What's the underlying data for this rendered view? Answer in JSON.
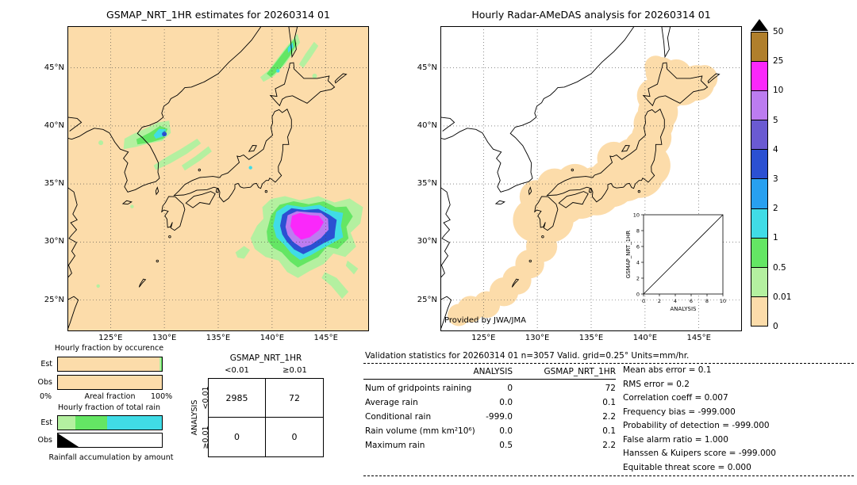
{
  "panels": {
    "left": {
      "title": "GSMAP_NRT_1HR estimates for 20260314 01"
    },
    "right": {
      "title": "Hourly Radar-AMeDAS analysis for 20260314 01",
      "credit": "Provided by JWA/JMA"
    }
  },
  "axes": {
    "lat_labels": [
      "45°N",
      "40°N",
      "35°N",
      "30°N",
      "25°N"
    ],
    "lon_labels": [
      "125°E",
      "130°E",
      "135°E",
      "140°E",
      "145°E"
    ]
  },
  "colorbar": {
    "labels": [
      "50",
      "25",
      "10",
      "5",
      "4",
      "3",
      "2",
      "1",
      "0.5",
      "0.01",
      "0"
    ],
    "colors_top_to_bottom": [
      "#b07f2c",
      "#fa28fa",
      "#bc7cf0",
      "#6a5ad2",
      "#2b50d2",
      "#28a0f0",
      "#40dce6",
      "#64e664",
      "#b4f0a0",
      "#fcdcaa"
    ],
    "overflow_marker": "black-triangle"
  },
  "inset": {
    "xlabel": "ANALYSIS",
    "ylabel": "GSMAP_NRT_1HR",
    "tick_labels": [
      "0",
      "2",
      "4",
      "6",
      "8",
      "10"
    ]
  },
  "occurrence_chart": {
    "title": "Hourly fraction by occurence",
    "row_labels": [
      "Est",
      "Obs"
    ],
    "axis_left": "0%",
    "axis_label": "Areal fraction",
    "axis_right": "100%",
    "est_segments": [
      {
        "color": "#fcdcaa",
        "pct": 97.5
      },
      {
        "color": "#b4f0a0",
        "pct": 1.5
      },
      {
        "color": "#64e664",
        "pct": 1.0
      }
    ],
    "obs_segments": [
      {
        "color": "#fcdcaa",
        "pct": 100
      }
    ]
  },
  "totalrain_chart": {
    "title": "Hourly fraction of total rain",
    "row_labels": [
      "Est",
      "Obs"
    ],
    "caption": "Rainfall accumulation by amount",
    "est_segments": [
      {
        "color": "#b4f0a0",
        "pct": 17
      },
      {
        "color": "#64e664",
        "pct": 30
      },
      {
        "color": "#40dce6",
        "pct": 53
      }
    ],
    "obs_segments": [],
    "obs_wedge_pct": 20
  },
  "contingency": {
    "col_header": "GSMAP_NRT_1HR",
    "row_header": "ANALYSIS",
    "col_labels": [
      "<0.01",
      "≥0.01"
    ],
    "row_labels": [
      "<0.01",
      "≥0.01"
    ],
    "values": [
      [
        "2985",
        "72"
      ],
      [
        "0",
        "0"
      ]
    ]
  },
  "stats": {
    "title": "Validation statistics for 20260314 01  n=3057 Valid. grid=0.25° Units=mm/hr.",
    "col_headers": [
      "ANALYSIS",
      "GSMAP_NRT_1HR"
    ],
    "rows": [
      {
        "label": "Num of gridpoints raining",
        "analysis": "0",
        "gsmap": "72"
      },
      {
        "label": "Average rain",
        "analysis": "0.0",
        "gsmap": "0.1"
      },
      {
        "label": "Conditional rain",
        "analysis": "-999.0",
        "gsmap": "2.2"
      },
      {
        "label": "Rain volume (mm km²10⁶)",
        "analysis": "0.0",
        "gsmap": "0.1"
      },
      {
        "label": "Maximum rain",
        "analysis": "0.5",
        "gsmap": "2.2"
      }
    ],
    "metrics": [
      {
        "label": "Mean abs error",
        "value": "0.1"
      },
      {
        "label": "RMS error",
        "value": "0.2"
      },
      {
        "label": "Correlation coeff",
        "value": "0.007"
      },
      {
        "label": "Frequency bias",
        "value": "-999.000"
      },
      {
        "label": "Probability of detection",
        "value": "-999.000"
      },
      {
        "label": "False alarm ratio",
        "value": "1.000"
      },
      {
        "label": "Hanssen & Kuipers score",
        "value": "-999.000"
      },
      {
        "label": "Equitable threat score",
        "value": "0.000"
      }
    ]
  },
  "chart_data": [
    {
      "type": "heatmap",
      "title": "GSMAP_NRT_1HR estimates for 20260314 01",
      "xticks": [
        "125°E",
        "130°E",
        "135°E",
        "140°E",
        "145°E"
      ],
      "yticks": [
        "45°N",
        "40°N",
        "35°N",
        "30°N",
        "25°N"
      ],
      "colorbar_levels_mm_hr": [
        0,
        0.01,
        0.5,
        1,
        2,
        3,
        4,
        5,
        10,
        25,
        50
      ],
      "notes": "large rain system SE of Japan near 140-146E / 29-33N with magenta core (10-25 band); lighter rain bands over the Sea of Japan near 127-134E / 36-40N and streaks near 139-144E / 44-48N"
    },
    {
      "type": "heatmap",
      "title": "Hourly Radar-AMeDAS analysis for 20260314 01",
      "xticks": [
        "125°E",
        "130°E",
        "135°E",
        "140°E",
        "145°E"
      ],
      "yticks": [
        "45°N",
        "40°N",
        "35°N",
        "30°N",
        "25°N"
      ],
      "colorbar_levels_mm_hr": [
        0,
        0.01,
        0.5,
        1,
        2,
        3,
        4,
        5,
        10,
        25,
        50
      ],
      "notes": "radar coverage band along the Japanese islands shaded at the 0-0.01 level; no raining gridpoints in the analysis"
    },
    {
      "type": "bar",
      "title": "Hourly fraction by occurence",
      "categories": [
        "Est",
        "Obs"
      ],
      "series": [
        {
          "name": "0-0.01 mm/hr",
          "values": [
            97.5,
            100.0
          ]
        },
        {
          "name": "0.01-0.5 mm/hr",
          "values": [
            1.5,
            0.0
          ]
        },
        {
          "name": "0.5-1 mm/hr",
          "values": [
            1.0,
            0.0
          ]
        }
      ],
      "xlabel": "Areal fraction",
      "xlim_pct": [
        0,
        100
      ]
    },
    {
      "type": "bar",
      "title": "Hourly fraction of total rain",
      "categories": [
        "Est",
        "Obs"
      ],
      "series": [
        {
          "name": "0.01-0.5 mm/hr",
          "values": [
            17,
            0
          ]
        },
        {
          "name": "0.5-1 mm/hr",
          "values": [
            30,
            0
          ]
        },
        {
          "name": "1-2 mm/hr",
          "values": [
            53,
            0
          ]
        }
      ]
    },
    {
      "type": "table",
      "title": "Contingency table (number of gridpoints)",
      "col_group": "GSMAP_NRT_1HR",
      "row_group": "ANALYSIS",
      "columns": [
        "<0.01",
        "≥0.01"
      ],
      "rows": [
        "<0.01",
        "≥0.01"
      ],
      "values": [
        [
          2985,
          72
        ],
        [
          0,
          0
        ]
      ]
    },
    {
      "type": "table",
      "title": "Validation statistics for 20260314 01 n=3057 Valid. grid=0.25° Units=mm/hr.",
      "columns": [
        "",
        "ANALYSIS",
        "GSMAP_NRT_1HR"
      ],
      "values": [
        [
          "Num of gridpoints raining",
          0,
          72
        ],
        [
          "Average rain",
          0.0,
          0.1
        ],
        [
          "Conditional rain",
          -999.0,
          2.2
        ],
        [
          "Rain volume (mm km²10⁶)",
          0.0,
          0.1
        ],
        [
          "Maximum rain",
          0.5,
          2.2
        ]
      ]
    },
    {
      "type": "scatter",
      "title": "GSMAP_NRT_1HR vs ANALYSIS inset",
      "xlabel": "ANALYSIS",
      "ylabel": "GSMAP_NRT_1HR",
      "xlim": [
        0,
        10
      ],
      "ylim": [
        0,
        10
      ],
      "points": [],
      "reference_line": "y=x"
    }
  ]
}
